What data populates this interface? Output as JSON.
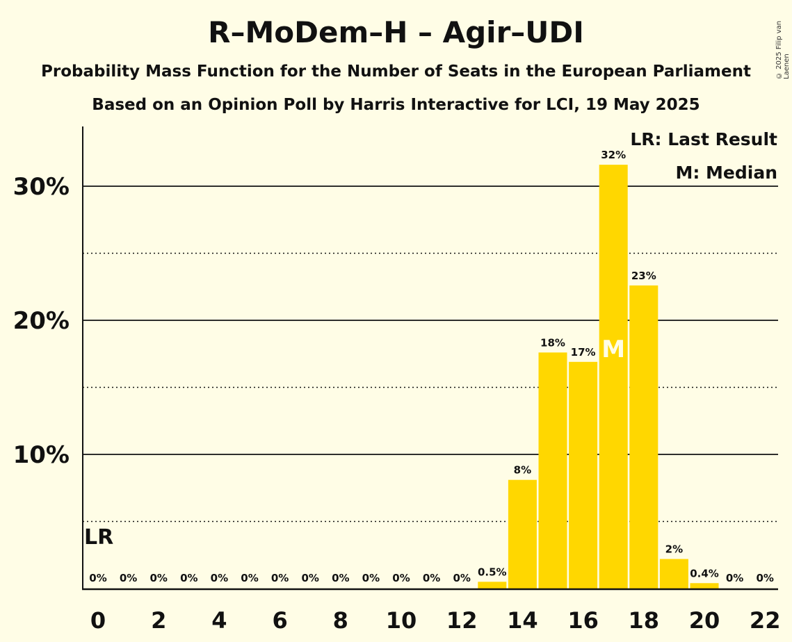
{
  "chart_data": {
    "type": "bar",
    "title": "R–MoDem–H – Agir–UDI",
    "subtitle": "Probability Mass Function for the Number of Seats in the European Parliament",
    "subtitle2": "Based on an Opinion Poll by Harris Interactive for LCI, 19 May 2025",
    "x": [
      0,
      1,
      2,
      3,
      4,
      5,
      6,
      7,
      8,
      9,
      10,
      11,
      12,
      13,
      14,
      15,
      16,
      17,
      18,
      19,
      20,
      21,
      22
    ],
    "values": [
      0,
      0,
      0,
      0,
      0,
      0,
      0,
      0,
      0,
      0,
      0,
      0,
      0,
      0.5,
      8.1,
      17.6,
      16.9,
      31.6,
      22.6,
      2.2,
      0.4,
      0,
      0
    ],
    "value_labels": [
      "0%",
      "0%",
      "0%",
      "0%",
      "0%",
      "0%",
      "0%",
      "0%",
      "0%",
      "0%",
      "0%",
      "0%",
      "0%",
      "0.5%",
      "8%",
      "18%",
      "17%",
      "32%",
      "23%",
      "2%",
      "0.4%",
      "0%",
      "0%"
    ],
    "xticks": [
      0,
      2,
      4,
      6,
      8,
      10,
      12,
      14,
      16,
      18,
      20,
      22
    ],
    "yticks": [
      10,
      20,
      30
    ],
    "ytick_labels": [
      "10%",
      "20%",
      "30%"
    ],
    "ylim": [
      0,
      34.4
    ],
    "grid_solid": [
      10,
      20,
      30
    ],
    "grid_dotted": [
      5,
      15,
      25
    ],
    "last_result_seat": 0,
    "last_result_marker": "LR",
    "median_seat": 17,
    "median_marker": "M",
    "legend": [
      "LR: Last Result",
      "M: Median"
    ],
    "bar_color": "#FFD700"
  },
  "copyright": "© 2025 Filip van Laenen"
}
